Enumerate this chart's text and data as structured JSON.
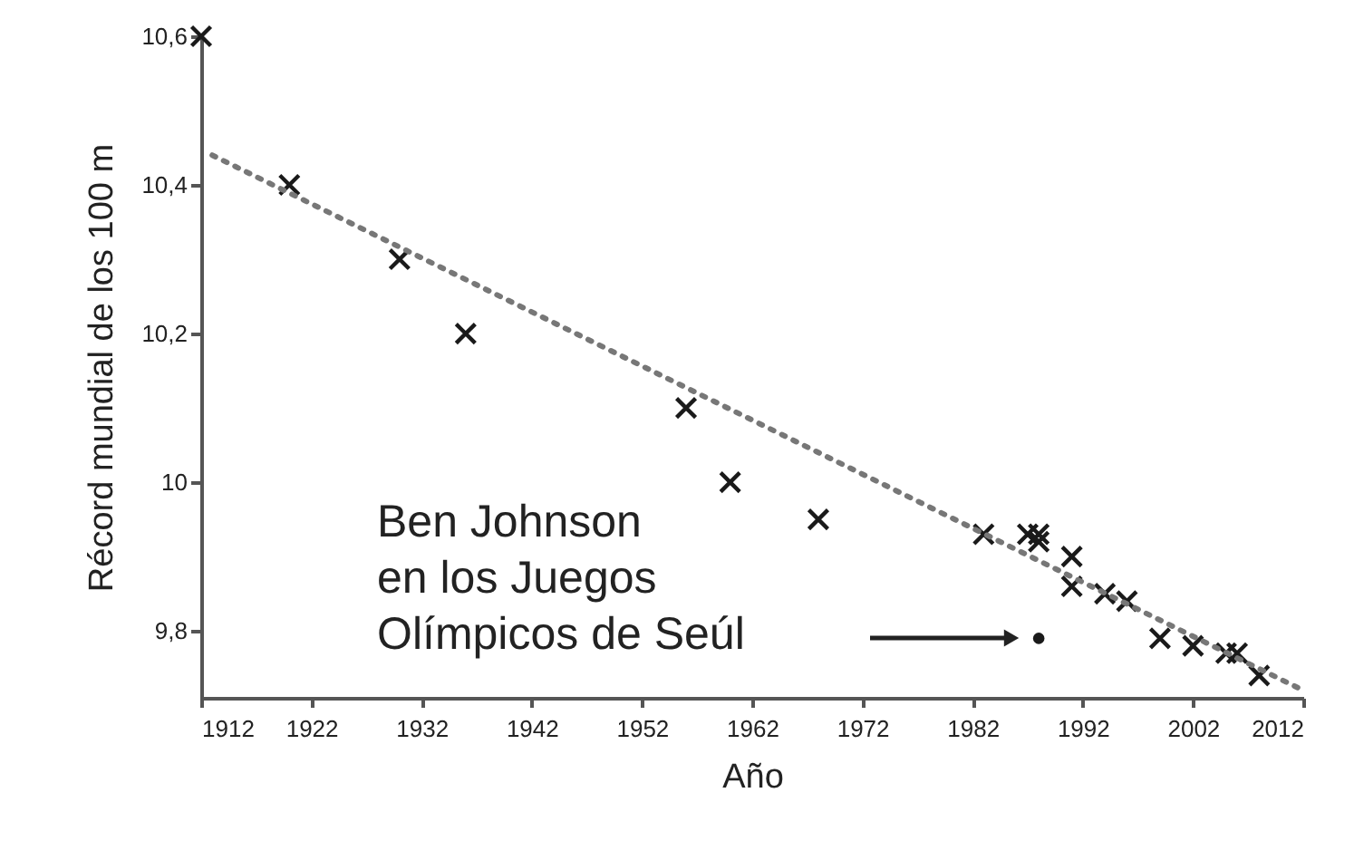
{
  "chart_data": {
    "type": "scatter",
    "xlabel": "Año",
    "ylabel": "Récord mundial de los 100 m",
    "xlim": [
      1912,
      2012
    ],
    "ylim": [
      9.71,
      10.6
    ],
    "xticks": [
      1912,
      1922,
      1932,
      1942,
      1952,
      1962,
      1972,
      1982,
      1992,
      2002,
      2012
    ],
    "yticks": [
      {
        "value": 9.8,
        "label": "9,8"
      },
      {
        "value": 10,
        "label": "10"
      },
      {
        "value": 10.2,
        "label": "10,2"
      },
      {
        "value": 10.4,
        "label": "10,4"
      },
      {
        "value": 10.6,
        "label": "10,6"
      }
    ],
    "grid": false,
    "series": [
      {
        "type": "scatter",
        "marker": "cross",
        "color": "#1a1a1a",
        "x": [
          1912,
          1920,
          1930,
          1936,
          1956,
          1960,
          1968,
          1983,
          1987,
          1988,
          1988,
          1991,
          1991,
          1994,
          1996,
          1999,
          2002,
          2005,
          2006,
          2008
        ],
        "values": [
          10.6,
          10.4,
          10.3,
          10.2,
          10.1,
          10.0,
          9.95,
          9.93,
          9.93,
          9.93,
          9.92,
          9.9,
          9.86,
          9.85,
          9.84,
          9.79,
          9.78,
          9.77,
          9.77,
          9.74
        ]
      },
      {
        "type": "scatter",
        "marker": "circle",
        "color": "#1a1a1a",
        "x": [
          1988
        ],
        "values": [
          9.79
        ]
      },
      {
        "type": "line",
        "line_style": "dotted",
        "color": "#777777",
        "x": [
          1913,
          2012
        ],
        "values": [
          10.44,
          9.72
        ]
      }
    ],
    "annotations": [
      "Ben Johnson\nen los Juegos\nOlímpicos de Seúl"
    ]
  }
}
